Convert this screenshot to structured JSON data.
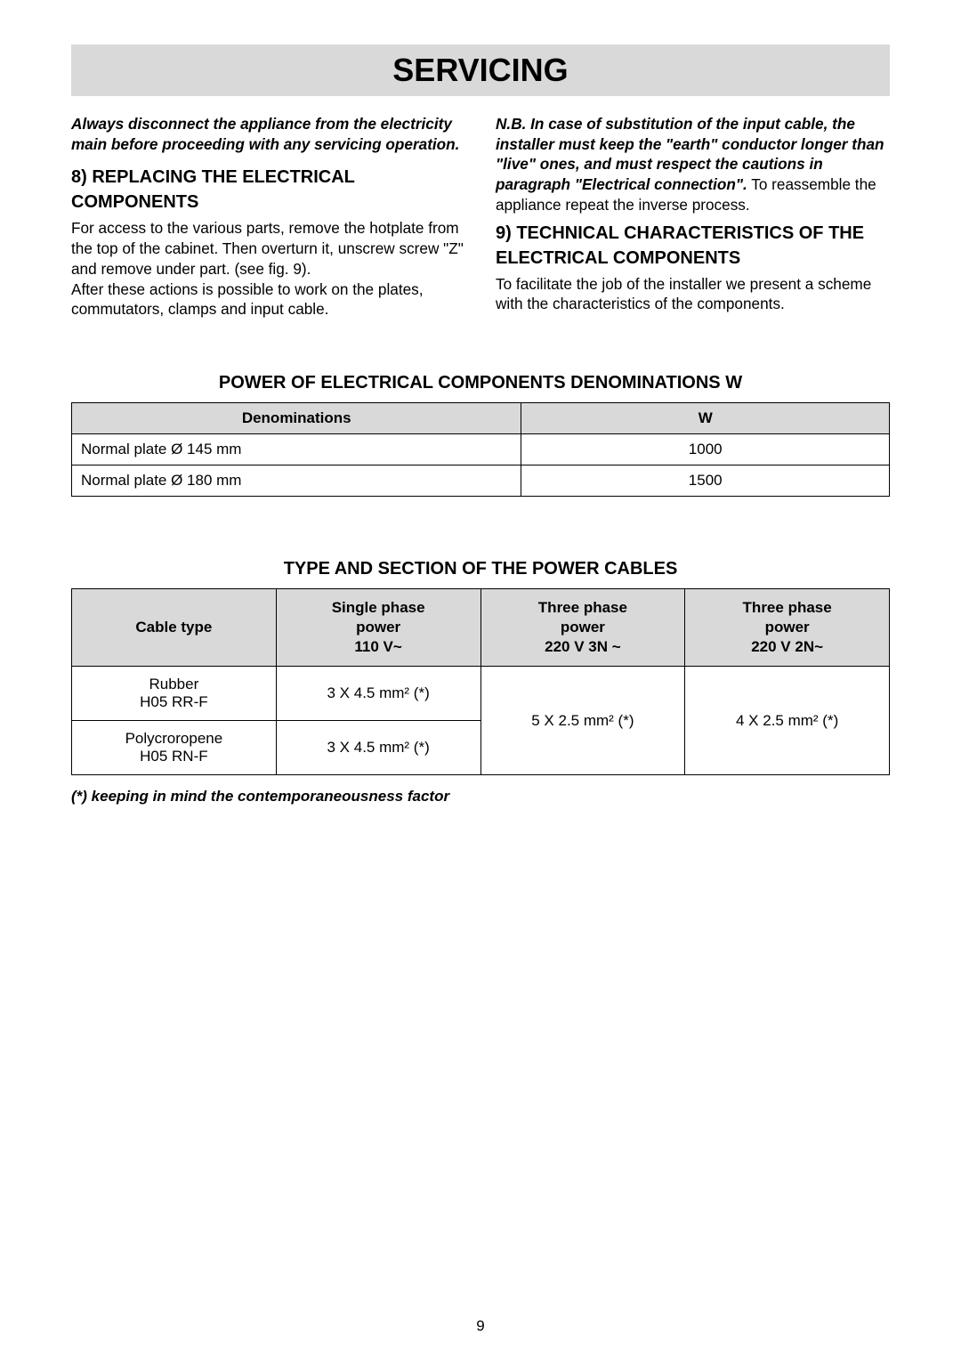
{
  "title_banner": "SERVICING",
  "left_col": {
    "intro": "Always disconnect the appliance from the electricity main before proceeding with any servicing operation.",
    "heading8": "8) REPLACING THE ELECTRICAL COMPONENTS",
    "body8a": "For access to the various parts, remove the hotplate from the top of the cabinet. Then overturn it, unscrew screw \"Z\" and remove under part. (see fig. 9).",
    "body8b": "After these actions is possible to work on the plates, commutators, clamps and input cable."
  },
  "right_col": {
    "nb": "N.B. In case of substitution of the input cable, the installer must keep the \"earth\" conductor longer than \"live\" ones, and must respect the cautions in paragraph \"Electrical connection\".",
    "reassemble": "To reassemble the appliance repeat the inverse process.",
    "heading9": "9) TECHNICAL CHARACTERISTICS OF THE ELECTRICAL COMPONENTS",
    "body9": "To facilitate the job of the installer we present a scheme with the characteristics of the components."
  },
  "power_table": {
    "title": "POWER OF ELECTRICAL COMPONENTS DENOMINATIONS W",
    "header_denom": "Denominations",
    "header_w": "W",
    "rows": [
      {
        "denom": "Normal plate Ø 145 mm",
        "w": "1000"
      },
      {
        "denom": "Normal plate Ø 180 mm",
        "w": "1500"
      }
    ]
  },
  "cables_table": {
    "title": "TYPE AND SECTION OF THE POWER CABLES",
    "header_type": "Cable type",
    "header_single": "Single phase\npower\n110 V~",
    "header_three_3n": "Three phase\npower\n220 V 3N ~",
    "header_three_2n": "Three phase\npower\n220 V 2N~",
    "row1_type": "Rubber\nH05 RR-F",
    "row1_single": "3 X 4.5 mm² (*)",
    "row2_type": "Polycroropene\nH05 RN-F",
    "row2_single": "3 X 4.5 mm² (*)",
    "merged_3n": "5 X 2.5 mm² (*)",
    "merged_2n": "4 X 2.5 mm² (*)"
  },
  "footnote": "(*) keeping in mind the contemporaneousness factor",
  "page_number": "9",
  "colors": {
    "banner_bg": "#d9d9d9",
    "page_bg": "#ffffff",
    "text": "#000000",
    "border": "#000000"
  }
}
